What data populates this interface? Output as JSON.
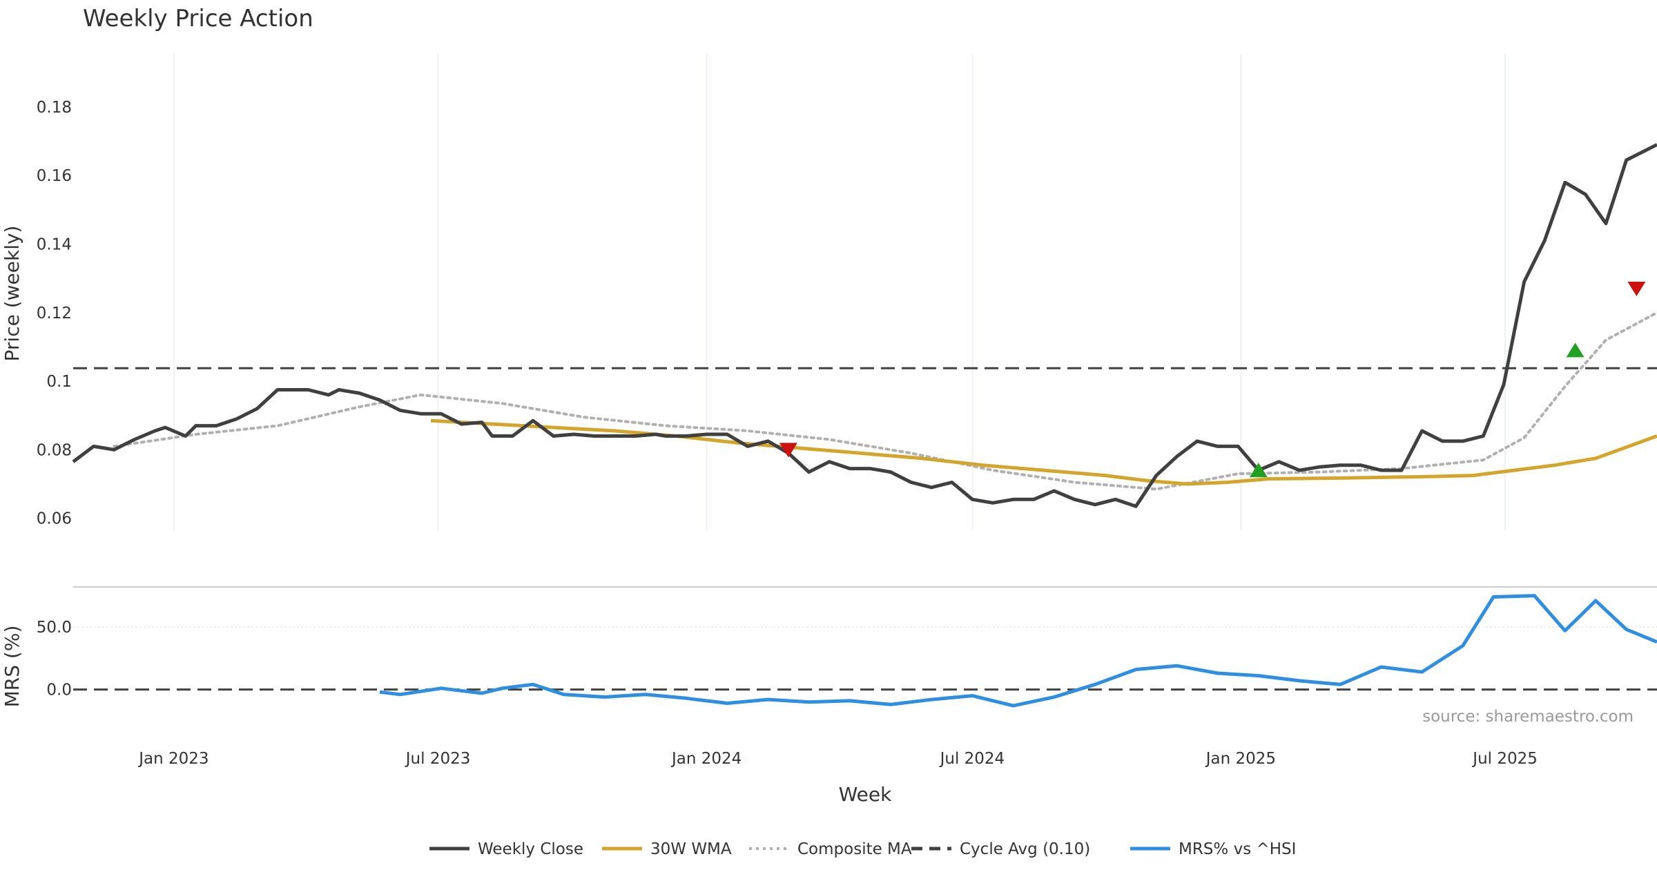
{
  "chart_data": {
    "type": "line",
    "title": "Weekly Price Action",
    "source_note": "source: sharemaestro.com",
    "xlabel": "Week",
    "x_ticks": [
      "Jan 2023",
      "Jul 2023",
      "Jan 2024",
      "Jul 2024",
      "Jan 2025",
      "Jul 2025"
    ],
    "x_range": [
      "2022-10-24",
      "2025-10-13"
    ],
    "price_panel": {
      "ylabel": "Price (weekly)",
      "ylim": [
        0.0565,
        0.1955
      ],
      "y_ticks": [
        "0.06",
        "0.08",
        "0.1",
        "0.12",
        "0.14",
        "0.16",
        "0.18"
      ],
      "y_tick_values": [
        0.06,
        0.08,
        0.1,
        0.12,
        0.14,
        0.16,
        0.18
      ],
      "grid": "vertical",
      "series": [
        {
          "name": "Weekly Close",
          "color": "#404040",
          "style": "solid",
          "points": [
            [
              "2022-10-24",
              0.0765
            ],
            [
              "2022-11-07",
              0.081
            ],
            [
              "2022-11-21",
              0.08
            ],
            [
              "2022-12-05",
              0.083
            ],
            [
              "2022-12-19",
              0.0855
            ],
            [
              "2022-12-26",
              0.0865
            ],
            [
              "2023-01-09",
              0.084
            ],
            [
              "2023-01-16",
              0.087
            ],
            [
              "2023-01-30",
              0.087
            ],
            [
              "2023-02-13",
              0.089
            ],
            [
              "2023-02-27",
              0.092
            ],
            [
              "2023-03-13",
              0.0975
            ],
            [
              "2023-04-03",
              0.0975
            ],
            [
              "2023-04-17",
              0.096
            ],
            [
              "2023-04-24",
              0.0975
            ],
            [
              "2023-05-08",
              0.0965
            ],
            [
              "2023-05-22",
              0.0945
            ],
            [
              "2023-06-05",
              0.0915
            ],
            [
              "2023-06-19",
              0.0905
            ],
            [
              "2023-07-03",
              0.0905
            ],
            [
              "2023-07-17",
              0.0875
            ],
            [
              "2023-07-31",
              0.088
            ],
            [
              "2023-08-07",
              0.084
            ],
            [
              "2023-08-21",
              0.084
            ],
            [
              "2023-09-04",
              0.0885
            ],
            [
              "2023-09-18",
              0.084
            ],
            [
              "2023-10-02",
              0.0845
            ],
            [
              "2023-10-16",
              0.084
            ],
            [
              "2023-11-13",
              0.084
            ],
            [
              "2023-11-27",
              0.0845
            ],
            [
              "2023-12-04",
              0.084
            ],
            [
              "2023-12-18",
              0.084
            ],
            [
              "2024-01-01",
              0.0845
            ],
            [
              "2024-01-15",
              0.0845
            ],
            [
              "2024-01-29",
              0.081
            ],
            [
              "2024-02-12",
              0.0825
            ],
            [
              "2024-02-26",
              0.079
            ],
            [
              "2024-03-11",
              0.0735
            ],
            [
              "2024-03-25",
              0.0765
            ],
            [
              "2024-04-08",
              0.0745
            ],
            [
              "2024-04-22",
              0.0745
            ],
            [
              "2024-05-06",
              0.0735
            ],
            [
              "2024-05-20",
              0.0705
            ],
            [
              "2024-06-03",
              0.069
            ],
            [
              "2024-06-17",
              0.0705
            ],
            [
              "2024-07-01",
              0.0655
            ],
            [
              "2024-07-15",
              0.0645
            ],
            [
              "2024-07-29",
              0.0655
            ],
            [
              "2024-08-12",
              0.0655
            ],
            [
              "2024-08-26",
              0.068
            ],
            [
              "2024-09-09",
              0.0655
            ],
            [
              "2024-09-23",
              0.064
            ],
            [
              "2024-10-07",
              0.0655
            ],
            [
              "2024-10-21",
              0.0635
            ],
            [
              "2024-11-04",
              0.0725
            ],
            [
              "2024-11-18",
              0.078
            ],
            [
              "2024-12-02",
              0.0825
            ],
            [
              "2024-12-16",
              0.081
            ],
            [
              "2024-12-30",
              0.081
            ],
            [
              "2025-01-13",
              0.074
            ],
            [
              "2025-01-27",
              0.0765
            ],
            [
              "2025-02-10",
              0.074
            ],
            [
              "2025-02-24",
              0.075
            ],
            [
              "2025-03-10",
              0.0755
            ],
            [
              "2025-03-24",
              0.0755
            ],
            [
              "2025-04-07",
              0.074
            ],
            [
              "2025-04-21",
              0.074
            ],
            [
              "2025-05-05",
              0.0855
            ],
            [
              "2025-05-19",
              0.0825
            ],
            [
              "2025-06-02",
              0.0825
            ],
            [
              "2025-06-16",
              0.084
            ],
            [
              "2025-06-30",
              0.099
            ],
            [
              "2025-07-14",
              0.129
            ],
            [
              "2025-07-28",
              0.141
            ],
            [
              "2025-08-11",
              0.158
            ],
            [
              "2025-08-25",
              0.1545
            ],
            [
              "2025-09-08",
              0.146
            ],
            [
              "2025-09-22",
              0.1645
            ],
            [
              "2025-10-13",
              0.169
            ]
          ]
        },
        {
          "name": "30W WMA",
          "color": "#d4a52b",
          "style": "solid",
          "points": [
            [
              "2023-06-26",
              0.0885
            ],
            [
              "2023-08-07",
              0.0875
            ],
            [
              "2023-09-18",
              0.0865
            ],
            [
              "2023-10-30",
              0.0855
            ],
            [
              "2023-12-11",
              0.084
            ],
            [
              "2024-01-22",
              0.082
            ],
            [
              "2024-03-04",
              0.0805
            ],
            [
              "2024-04-15",
              0.079
            ],
            [
              "2024-05-27",
              0.0775
            ],
            [
              "2024-07-08",
              0.0755
            ],
            [
              "2024-08-19",
              0.074
            ],
            [
              "2024-09-30",
              0.0725
            ],
            [
              "2024-10-28",
              0.071
            ],
            [
              "2024-11-25",
              0.07
            ],
            [
              "2024-12-23",
              0.0705
            ],
            [
              "2025-01-20",
              0.0715
            ],
            [
              "2025-03-17",
              0.0718
            ],
            [
              "2025-05-12",
              0.0722
            ],
            [
              "2025-06-09",
              0.0725
            ],
            [
              "2025-07-07",
              0.074
            ],
            [
              "2025-08-04",
              0.0755
            ],
            [
              "2025-09-01",
              0.0775
            ],
            [
              "2025-10-13",
              0.084
            ]
          ]
        },
        {
          "name": "Composite MA",
          "color": "#b0b0b0",
          "style": "dotted",
          "points": [
            [
              "2022-11-21",
              0.081
            ],
            [
              "2023-01-16",
              0.0845
            ],
            [
              "2023-03-13",
              0.087
            ],
            [
              "2023-05-08",
              0.0925
            ],
            [
              "2023-06-19",
              0.096
            ],
            [
              "2023-08-14",
              0.0935
            ],
            [
              "2023-10-09",
              0.0895
            ],
            [
              "2023-12-04",
              0.087
            ],
            [
              "2024-01-29",
              0.0855
            ],
            [
              "2024-03-25",
              0.083
            ],
            [
              "2024-05-20",
              0.079
            ],
            [
              "2024-07-15",
              0.074
            ],
            [
              "2024-09-09",
              0.0705
            ],
            [
              "2024-11-04",
              0.0685
            ],
            [
              "2024-12-30",
              0.073
            ],
            [
              "2025-02-24",
              0.0735
            ],
            [
              "2025-04-21",
              0.0745
            ],
            [
              "2025-06-16",
              0.077
            ],
            [
              "2025-07-14",
              0.0835
            ],
            [
              "2025-08-11",
              0.0985
            ],
            [
              "2025-09-08",
              0.112
            ],
            [
              "2025-10-13",
              0.12
            ]
          ]
        }
      ],
      "reference_lines": [
        {
          "name": "Cycle Avg (0.10)",
          "y": 0.1038,
          "color": "#404040",
          "style": "dashed"
        }
      ],
      "markers": [
        {
          "type": "sell",
          "date": "2024-02-26",
          "y": 0.08,
          "color": "#cc1111"
        },
        {
          "type": "buy",
          "date": "2025-01-13",
          "y": 0.074,
          "color": "#22a022"
        },
        {
          "type": "sell",
          "date": "2025-09-29",
          "y": 0.127,
          "color": "#cc1111"
        },
        {
          "type": "buy",
          "date": "2025-08-18",
          "y": 0.109,
          "color": "#22a022"
        }
      ]
    },
    "mrs_panel": {
      "ylabel": "MRS (%)",
      "ylim": [
        -35,
        82
      ],
      "y_ticks": [
        "0.0",
        "50.0"
      ],
      "y_tick_values": [
        0,
        50
      ],
      "series": [
        {
          "name": "MRS% vs ^HSI",
          "color": "#2e8fe0",
          "style": "solid",
          "points": [
            [
              "2023-05-22",
              -2
            ],
            [
              "2023-06-05",
              -4
            ],
            [
              "2023-07-03",
              1
            ],
            [
              "2023-07-31",
              -3
            ],
            [
              "2023-08-14",
              1
            ],
            [
              "2023-09-04",
              4
            ],
            [
              "2023-09-25",
              -4
            ],
            [
              "2023-10-23",
              -6
            ],
            [
              "2023-11-20",
              -4
            ],
            [
              "2023-12-18",
              -7
            ],
            [
              "2024-01-15",
              -11
            ],
            [
              "2024-02-12",
              -8
            ],
            [
              "2024-03-11",
              -10
            ],
            [
              "2024-04-08",
              -9
            ],
            [
              "2024-05-06",
              -12
            ],
            [
              "2024-06-03",
              -8
            ],
            [
              "2024-07-01",
              -5
            ],
            [
              "2024-07-29",
              -13
            ],
            [
              "2024-08-26",
              -6
            ],
            [
              "2024-09-23",
              4
            ],
            [
              "2024-10-21",
              16
            ],
            [
              "2024-11-18",
              19
            ],
            [
              "2024-12-16",
              13
            ],
            [
              "2025-01-13",
              11
            ],
            [
              "2025-02-10",
              7
            ],
            [
              "2025-03-10",
              4
            ],
            [
              "2025-04-07",
              18
            ],
            [
              "2025-05-05",
              14
            ],
            [
              "2025-06-02",
              35
            ],
            [
              "2025-06-23",
              74
            ],
            [
              "2025-07-21",
              75
            ],
            [
              "2025-08-11",
              47
            ],
            [
              "2025-09-01",
              71
            ],
            [
              "2025-09-22",
              48
            ],
            [
              "2025-10-13",
              38
            ]
          ]
        }
      ],
      "reference_lines": [
        {
          "y": 0,
          "color": "#404040",
          "style": "dashed"
        }
      ]
    }
  },
  "legend": {
    "items": [
      {
        "label": "Weekly Close",
        "color": "#404040",
        "style": "solid"
      },
      {
        "label": "30W WMA",
        "color": "#d4a52b",
        "style": "solid"
      },
      {
        "label": "Composite MA",
        "color": "#b0b0b0",
        "style": "dotted"
      },
      {
        "label": "Cycle Avg (0.10)",
        "color": "#404040",
        "style": "dashed"
      },
      {
        "label": "MRS% vs ^HSI",
        "color": "#2e8fe0",
        "style": "solid"
      }
    ],
    "placement": "bottom-center"
  }
}
